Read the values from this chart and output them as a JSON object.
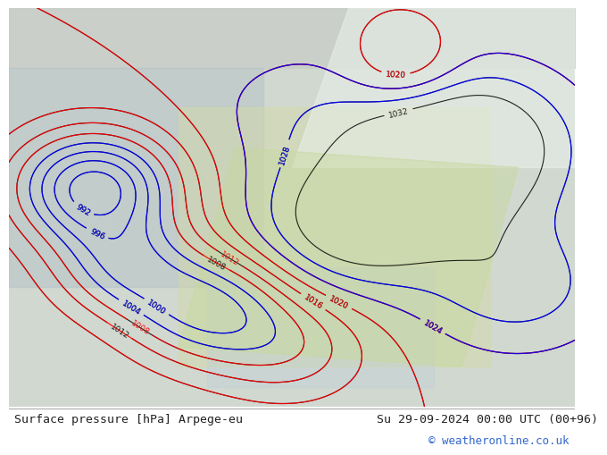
{
  "title_left": "Surface pressure [hPa] Arpege-eu",
  "title_right": "Su 29-09-2024 00:00 UTC (00+96)",
  "copyright": "© weatheronline.co.uk",
  "bg_color": "#ffffff",
  "footer_bg": "#f0f0f0",
  "text_color": "#333333",
  "title_fontsize": 10,
  "copyright_color": "#3366cc"
}
